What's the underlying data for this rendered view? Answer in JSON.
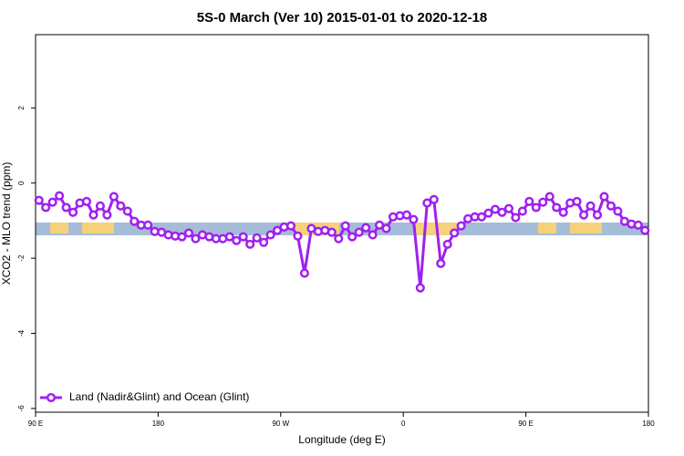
{
  "chart_data": {
    "type": "line",
    "title": "5S-0 March (Ver 10)   2015-01-01 to 2020-12-18",
    "x_label": "Longitude (deg E)",
    "y_label": "XCO2 - MLO trend (ppm)",
    "xlim": [
      90,
      540
    ],
    "ylim": [
      -6.1,
      3.95
    ],
    "xticks": [
      {
        "value": 90,
        "label": "90 E"
      },
      180,
      {
        "value": 270,
        "label": "90 W"
      },
      {
        "value": 360,
        "label": "0"
      },
      {
        "value": 450,
        "label": "90 E"
      },
      {
        "value": 540,
        "label": "180"
      }
    ],
    "yticks": [
      -6,
      -4,
      -2,
      0,
      2
    ],
    "legend": "bottom-left",
    "x": [
      92.5,
      97.5,
      102.5,
      107.5,
      112.5,
      117.5,
      122.5,
      127.5,
      132.5,
      137.5,
      142.5,
      147.5,
      152.5,
      157.5,
      162.5,
      167.5,
      172.5,
      177.5,
      182.5,
      187.5,
      192.5,
      197.5,
      202.5,
      207.5,
      212.5,
      217.5,
      222.5,
      227.5,
      232.5,
      237.5,
      242.5,
      247.5,
      252.5,
      257.5,
      262.5,
      267.5,
      272.5,
      277.5,
      282.5,
      287.5,
      292.5,
      297.5,
      302.5,
      307.5,
      312.5,
      317.5,
      322.5,
      327.5,
      332.5,
      337.5,
      342.5,
      347.5,
      352.5,
      357.5,
      362.5,
      367.5,
      372.5,
      377.5,
      382.5,
      387.5,
      392.5,
      397.5,
      402.5,
      407.5,
      412.5,
      417.5,
      422.5,
      427.5,
      432.5,
      437.5,
      442.5,
      447.5,
      452.5,
      457.5,
      462.5,
      467.5,
      472.5,
      477.5,
      482.5,
      487.5,
      492.5,
      497.5,
      502.5,
      507.5,
      512.5,
      517.5,
      522.5,
      527.5,
      532.5,
      537.5
    ],
    "series": [
      {
        "name": "Land (Nadir&Glint) and Ocean (Glint)",
        "color": "#a020f0",
        "values": [
          -0.46,
          -0.65,
          -0.51,
          -0.34,
          -0.65,
          -0.78,
          -0.53,
          -0.49,
          -0.85,
          -0.61,
          -0.85,
          -0.36,
          -0.61,
          -0.75,
          -1.02,
          -1.12,
          -1.12,
          -1.29,
          -1.31,
          -1.38,
          -1.41,
          -1.43,
          -1.33,
          -1.48,
          -1.38,
          -1.43,
          -1.48,
          -1.48,
          -1.43,
          -1.53,
          -1.43,
          -1.63,
          -1.46,
          -1.58,
          -1.38,
          -1.26,
          -1.17,
          -1.14,
          -1.41,
          -2.4,
          -1.21,
          -1.29,
          -1.26,
          -1.31,
          -1.48,
          -1.14,
          -1.43,
          -1.31,
          -1.19,
          -1.38,
          -1.12,
          -1.21,
          -0.9,
          -0.87,
          -0.85,
          -0.97,
          -2.79,
          -0.53,
          -0.44,
          -2.14,
          -1.63,
          -1.33,
          -1.14,
          -0.95,
          -0.9,
          -0.9,
          -0.8,
          -0.7,
          -0.78,
          -0.68,
          -0.92,
          -0.75,
          -0.49,
          -0.65,
          -0.51,
          -0.36,
          -0.65,
          -0.78,
          -0.53,
          -0.49,
          -0.85,
          -0.61,
          -0.85,
          -0.36,
          -0.61,
          -0.75,
          -1.02,
          -1.09,
          -1.12,
          -1.26
        ]
      }
    ]
  }
}
